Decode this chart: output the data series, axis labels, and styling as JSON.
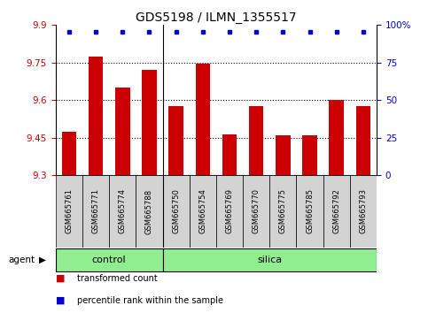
{
  "title": "GDS5198 / ILMN_1355517",
  "samples": [
    "GSM665761",
    "GSM665771",
    "GSM665774",
    "GSM665788",
    "GSM665750",
    "GSM665754",
    "GSM665769",
    "GSM665770",
    "GSM665775",
    "GSM665785",
    "GSM665792",
    "GSM665793"
  ],
  "values": [
    9.475,
    9.775,
    9.65,
    9.72,
    9.575,
    9.745,
    9.465,
    9.575,
    9.46,
    9.46,
    9.6,
    9.575
  ],
  "groups": [
    {
      "label": "control",
      "start": 0,
      "end": 3,
      "color": "#90EE90"
    },
    {
      "label": "silica",
      "start": 4,
      "end": 11,
      "color": "#90EE90"
    }
  ],
  "ylim_left": [
    9.3,
    9.9
  ],
  "ylim_right": [
    0,
    100
  ],
  "yticks_left": [
    9.3,
    9.45,
    9.6,
    9.75,
    9.9
  ],
  "yticks_right": [
    0,
    25,
    50,
    75,
    100
  ],
  "ytick_labels_right": [
    "0",
    "25",
    "50",
    "75",
    "100%"
  ],
  "bar_color": "#cc0000",
  "dot_color": "#0000cc",
  "bar_width": 0.55,
  "tick_label_color_left": "#cc0000",
  "tick_label_color_right": "#0000cc",
  "legend": [
    {
      "color": "#cc0000",
      "label": "transformed count"
    },
    {
      "color": "#0000cc",
      "label": "percentile rank within the sample"
    }
  ],
  "group_divider": 3.5,
  "sample_box_color": "#d3d3d3"
}
